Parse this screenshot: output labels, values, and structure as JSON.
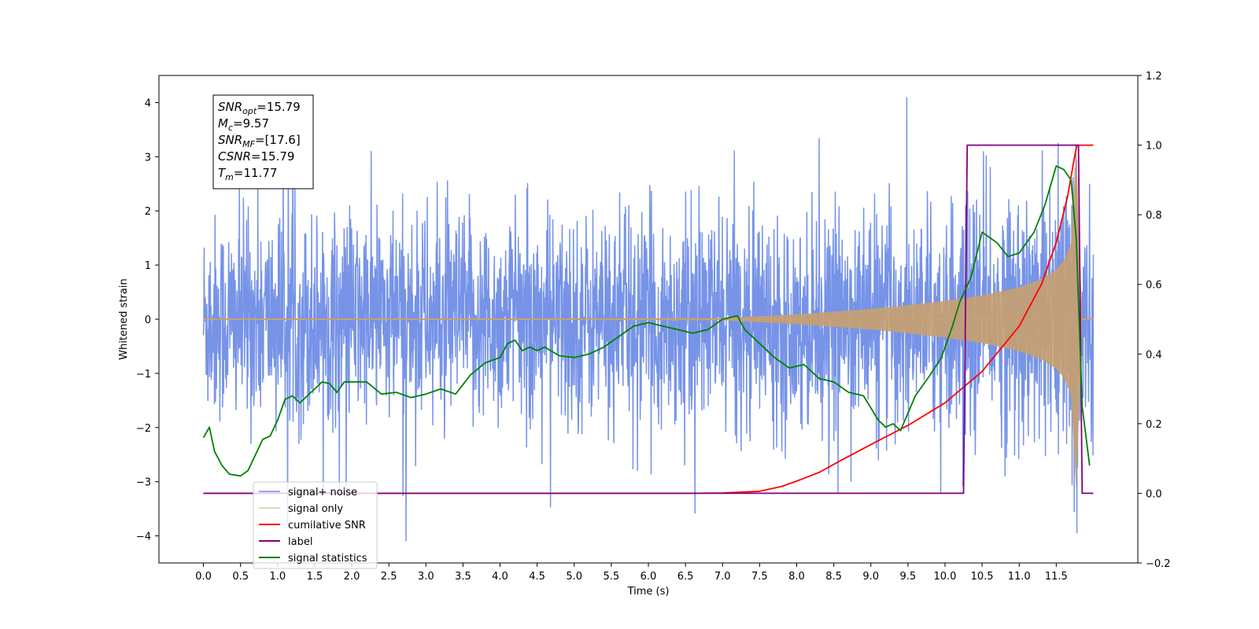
{
  "chart_data": {
    "type": "line",
    "xlabel": "Time (s)",
    "ylabel": "Whitened strain",
    "xlim": [
      -0.6,
      12.6
    ],
    "ylim": [
      -4.5,
      4.5
    ],
    "y2lim": [
      -0.2,
      1.2
    ],
    "x_ticks": [
      "0.0",
      "0.5",
      "1.0",
      "1.5",
      "2.0",
      "2.5",
      "3.0",
      "3.5",
      "4.0",
      "4.5",
      "5.0",
      "5.5",
      "6.0",
      "6.5",
      "7.0",
      "7.5",
      "8.0",
      "8.5",
      "9.0",
      "9.5",
      "10.0",
      "10.5",
      "11.0",
      "11.5"
    ],
    "y_ticks": [
      "4",
      "3",
      "2",
      "1",
      "0",
      "−1",
      "−2",
      "−3",
      "−4"
    ],
    "y2_ticks": [
      "1.2",
      "1.0",
      "0.8",
      "0.6",
      "0.4",
      "0.2",
      "0.0",
      "−0.2"
    ],
    "grid": false,
    "legend_position": "lower-left",
    "annotation": {
      "lines": [
        {
          "sym": "SNR",
          "sub": "opt",
          "value": "=15.79"
        },
        {
          "sym": "M",
          "sub": "c",
          "value": "=9.57"
        },
        {
          "sym": "SNR",
          "sub": "MF",
          "value": "=[17.6]"
        },
        {
          "sym": "CSNR",
          "sub": "",
          "value": "=15.79"
        },
        {
          "sym": "T",
          "sub": "m",
          "value": "=11.77"
        }
      ]
    },
    "series": [
      {
        "name": "signal+ noise",
        "axis": "left",
        "color": "#6f8de6",
        "description_values": {
          "x_start": 0.0,
          "x_end": 12.0,
          "typical_envelope": [
            -2.0,
            2.0
          ],
          "max": 4.1,
          "min": -4.1
        }
      },
      {
        "name": "signal only",
        "axis": "left",
        "color": "#c8a070",
        "envelope_x": [
          0.0,
          7.0,
          8.0,
          9.0,
          9.5,
          10.0,
          10.5,
          11.0,
          11.3,
          11.5,
          11.6,
          11.7,
          11.77,
          11.85,
          12.0
        ],
        "envelope_y": [
          0.0,
          0.02,
          0.09,
          0.19,
          0.26,
          0.34,
          0.44,
          0.59,
          0.74,
          0.92,
          1.08,
          1.4,
          3.2,
          0.0,
          0.0
        ]
      },
      {
        "name": "cumilative SNR",
        "axis": "right",
        "color": "#ff0000",
        "x": [
          0.0,
          6.5,
          7.0,
          7.5,
          7.8,
          8.0,
          8.3,
          8.6,
          9.0,
          9.5,
          10.0,
          10.5,
          11.0,
          11.3,
          11.5,
          11.65,
          11.75,
          11.78,
          12.0
        ],
        "y": [
          0.0,
          0.0,
          0.001,
          0.006,
          0.02,
          0.035,
          0.06,
          0.095,
          0.14,
          0.195,
          0.26,
          0.35,
          0.48,
          0.6,
          0.72,
          0.85,
          0.97,
          1.0,
          1.0
        ]
      },
      {
        "name": "label",
        "axis": "right",
        "color": "#800080",
        "x": [
          0.0,
          10.25,
          10.3,
          11.8,
          11.85,
          12.0
        ],
        "y": [
          0.0,
          0.0,
          1.0,
          1.0,
          0.0,
          0.0
        ]
      },
      {
        "name": "signal statistics",
        "axis": "right",
        "color": "#008000",
        "x": [
          0.0,
          0.08,
          0.15,
          0.25,
          0.35,
          0.5,
          0.6,
          0.7,
          0.8,
          0.9,
          1.0,
          1.1,
          1.2,
          1.3,
          1.4,
          1.5,
          1.6,
          1.7,
          1.8,
          1.9,
          2.0,
          2.2,
          2.4,
          2.6,
          2.8,
          3.0,
          3.2,
          3.4,
          3.6,
          3.8,
          4.0,
          4.1,
          4.2,
          4.3,
          4.4,
          4.5,
          4.6,
          4.8,
          5.0,
          5.2,
          5.4,
          5.6,
          5.8,
          6.0,
          6.2,
          6.4,
          6.6,
          6.8,
          7.0,
          7.2,
          7.3,
          7.5,
          7.7,
          7.9,
          8.1,
          8.3,
          8.5,
          8.7,
          8.9,
          9.1,
          9.2,
          9.3,
          9.4,
          9.5,
          9.6,
          9.8,
          9.95,
          10.1,
          10.2,
          10.35,
          10.5,
          10.7,
          10.85,
          11.0,
          11.2,
          11.35,
          11.5,
          11.6,
          11.7,
          11.77,
          11.85,
          11.95
        ],
        "y": [
          0.16,
          0.19,
          0.12,
          0.08,
          0.055,
          0.05,
          0.065,
          0.11,
          0.155,
          0.165,
          0.21,
          0.27,
          0.28,
          0.26,
          0.28,
          0.3,
          0.32,
          0.315,
          0.29,
          0.32,
          0.32,
          0.32,
          0.285,
          0.29,
          0.275,
          0.285,
          0.3,
          0.285,
          0.34,
          0.375,
          0.39,
          0.43,
          0.44,
          0.41,
          0.42,
          0.41,
          0.42,
          0.395,
          0.39,
          0.4,
          0.42,
          0.45,
          0.48,
          0.49,
          0.48,
          0.47,
          0.46,
          0.47,
          0.5,
          0.51,
          0.47,
          0.43,
          0.39,
          0.36,
          0.37,
          0.33,
          0.32,
          0.29,
          0.28,
          0.21,
          0.19,
          0.2,
          0.18,
          0.23,
          0.28,
          0.34,
          0.39,
          0.48,
          0.55,
          0.62,
          0.75,
          0.72,
          0.68,
          0.69,
          0.75,
          0.83,
          0.94,
          0.93,
          0.9,
          0.73,
          0.25,
          0.08
        ]
      }
    ]
  }
}
